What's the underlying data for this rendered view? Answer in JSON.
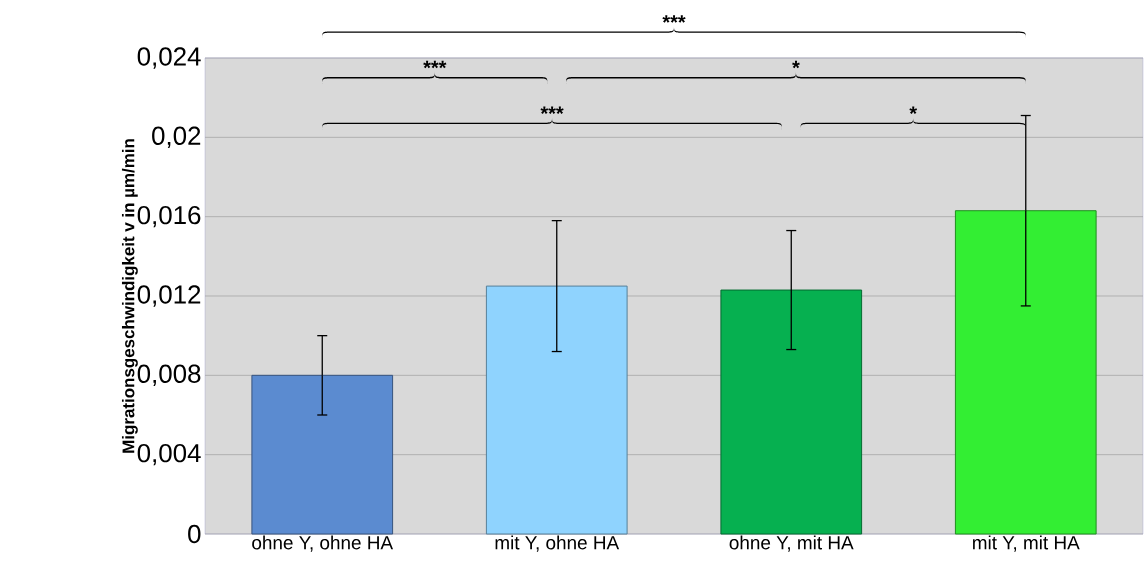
{
  "chart_data": {
    "type": "bar",
    "ylabel": "Migrationsgeschwindigkeit v in µm/min",
    "categories": [
      "ohne Y, ohne HA",
      "mit Y, ohne HA",
      "ohne Y, mit HA",
      "mit Y, mit HA"
    ],
    "values": [
      0.008,
      0.0125,
      0.0123,
      0.0163
    ],
    "errors": [
      0.002,
      0.0033,
      0.003,
      0.0048
    ],
    "colors": [
      "#5b8bd0",
      "#8fd3fe",
      "#06b050",
      "#33ee33"
    ],
    "ylim": [
      0,
      0.024
    ],
    "yticks": [
      0,
      {
        "value": 0.004,
        "label": "0,004"
      },
      {
        "value": 0.008,
        "label": "0,008"
      },
      {
        "value": 0.012,
        "label": "0,012"
      },
      {
        "value": 0.016,
        "label": "0,016"
      },
      {
        "value": 0.02,
        "label": "0,02"
      },
      {
        "value": 0.024,
        "label": "0,024"
      }
    ],
    "grid": "y",
    "annotations": [
      "***",
      "***",
      "*",
      "***",
      "*"
    ]
  }
}
